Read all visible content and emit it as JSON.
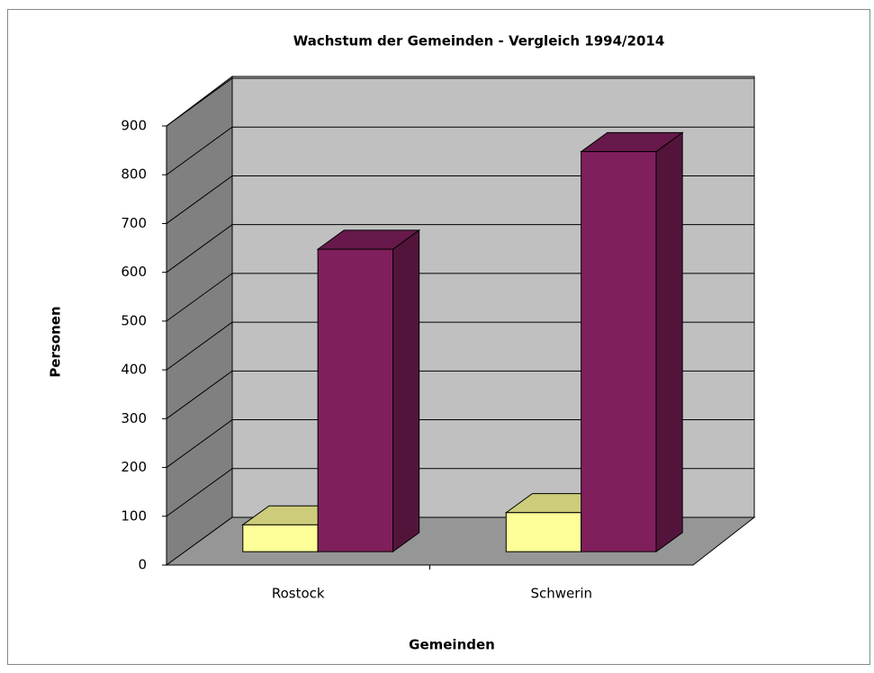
{
  "chart_data": {
    "type": "bar3d",
    "title": "Wachstum der Gemeinden - Vergleich 1994/2014",
    "x_label": "Gemeinden",
    "y_label": "Personen",
    "categories": [
      "Rostock",
      "Schwerin"
    ],
    "series": [
      {
        "color": "#ffff99",
        "values": [
          55,
          80
        ]
      },
      {
        "color": "#7f1f5c",
        "values": [
          620,
          820
        ]
      }
    ],
    "ylim": [
      0,
      900
    ],
    "yticks": [
      0,
      100,
      200,
      300,
      400,
      500,
      600,
      700,
      800,
      900
    ],
    "grid": true
  }
}
